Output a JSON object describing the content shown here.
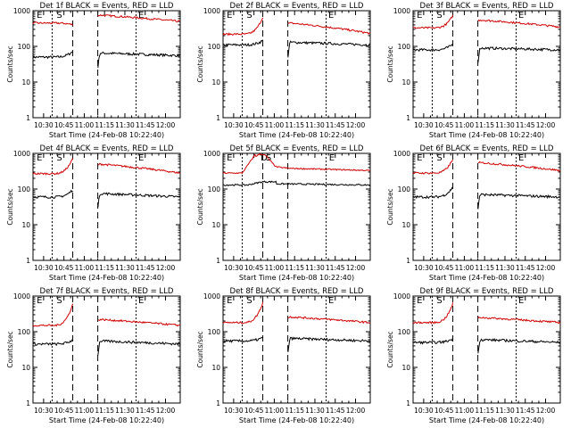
{
  "colors": {
    "events": "#000000",
    "lld": "#d00000",
    "axes": "#000000",
    "background": "#ffffff"
  },
  "chart_data": [
    {
      "type": "line",
      "title": "Det 1f BLACK = Events, RED = LLD",
      "xlabel": "Start Time (24-Feb-08 10:22:40)",
      "ylabel": "Counts/sec",
      "x_ticks": [
        "10:30",
        "10:45",
        "11:00",
        "11:15",
        "11:30",
        "11:45",
        "12:00"
      ],
      "y_ticks": [
        "1",
        "10",
        "100",
        "1000"
      ],
      "y_scale": "log",
      "ylim": [
        1,
        1000
      ],
      "markers": [
        "E",
        "S",
        "E"
      ],
      "series": [
        {
          "name": "Events",
          "color": "#000000",
          "base_before": 50,
          "base_after": 65,
          "base_end": 55,
          "ramp_min": 75
        },
        {
          "name": "LLD",
          "color": "#d00000",
          "base_before": 450,
          "base_after": 750,
          "base_end": 500,
          "ramp_min": 400
        }
      ]
    },
    {
      "type": "line",
      "title": "Det 2f BLACK = Events, RED = LLD",
      "xlabel": "Start Time (24-Feb-08 10:22:40)",
      "ylabel": "Counts/sec",
      "x_ticks": [
        "10:30",
        "10:45",
        "11:00",
        "11:15",
        "11:30",
        "11:45",
        "12:00"
      ],
      "y_ticks": [
        "1",
        "10",
        "100",
        "1000"
      ],
      "y_scale": "log",
      "ylim": [
        1,
        1000
      ],
      "markers": [
        "E",
        "S",
        "E"
      ],
      "series": [
        {
          "name": "Events",
          "color": "#000000",
          "base_before": 110,
          "base_after": 130,
          "base_end": 110,
          "ramp_min": 150
        },
        {
          "name": "LLD",
          "color": "#d00000",
          "base_before": 220,
          "base_after": 450,
          "base_end": 230,
          "ramp_min": 750
        }
      ]
    },
    {
      "type": "line",
      "title": "Det 3f BLACK = Events, RED = LLD",
      "xlabel": "Start Time (24-Feb-08 10:22:40)",
      "ylabel": "Counts/sec",
      "x_ticks": [
        "10:30",
        "10:45",
        "11:00",
        "11:15",
        "11:30",
        "11:45",
        "12:00"
      ],
      "y_ticks": [
        "1",
        "10",
        "100",
        "1000"
      ],
      "y_scale": "log",
      "ylim": [
        1,
        1000
      ],
      "markers": [
        "E",
        "S",
        "E"
      ],
      "series": [
        {
          "name": "Events",
          "color": "#000000",
          "base_before": 80,
          "base_after": 90,
          "base_end": 80,
          "ramp_min": 120
        },
        {
          "name": "LLD",
          "color": "#d00000",
          "base_before": 330,
          "base_after": 550,
          "base_end": 350,
          "ramp_min": 800
        }
      ]
    },
    {
      "type": "line",
      "title": "Det 4f BLACK = Events, RED = LLD",
      "xlabel": "Start Time (24-Feb-08 10:22:40)",
      "ylabel": "Counts/sec",
      "x_ticks": [
        "10:30",
        "10:45",
        "11:00",
        "11:15",
        "11:30",
        "11:45",
        "12:00"
      ],
      "y_ticks": [
        "1",
        "10",
        "100",
        "1000"
      ],
      "y_scale": "log",
      "ylim": [
        1,
        1000
      ],
      "markers": [
        "E",
        "S",
        "E"
      ],
      "series": [
        {
          "name": "Events",
          "color": "#000000",
          "base_before": 60,
          "base_after": 75,
          "base_end": 60,
          "ramp_min": 100
        },
        {
          "name": "LLD",
          "color": "#d00000",
          "base_before": 270,
          "base_after": 500,
          "base_end": 280,
          "ramp_min": 800
        }
      ]
    },
    {
      "type": "line",
      "title": "Det 5f BLACK = Events, RED = LLD",
      "xlabel": "Start Time (24-Feb-08 10:22:40)",
      "ylabel": "Counts/sec",
      "x_ticks": [
        "10:30",
        "10:45",
        "11:00",
        "11:15",
        "11:30",
        "11:45",
        "12:00"
      ],
      "y_ticks": [
        "1",
        "10",
        "100",
        "1000"
      ],
      "y_scale": "log",
      "ylim": [
        1,
        1000
      ],
      "markers": [
        "E",
        "D",
        "S",
        "E"
      ],
      "series": [
        {
          "name": "Events",
          "color": "#000000",
          "base_before": 130,
          "base_after": 140,
          "base_end": 130,
          "ramp_min": 160
        },
        {
          "name": "LLD",
          "color": "#d00000",
          "base_before": 280,
          "base_after": 380,
          "base_end": 330,
          "ramp_min": 950
        }
      ]
    },
    {
      "type": "line",
      "title": "Det 6f BLACK = Events, RED = LLD",
      "xlabel": "Start Time (24-Feb-08 10:22:40)",
      "ylabel": "Counts/sec",
      "x_ticks": [
        "10:30",
        "10:45",
        "11:00",
        "11:15",
        "11:30",
        "11:45",
        "12:00"
      ],
      "y_ticks": [
        "1",
        "10",
        "100",
        "1000"
      ],
      "y_scale": "log",
      "ylim": [
        1,
        1000
      ],
      "markers": [
        "E",
        "S",
        "E"
      ],
      "series": [
        {
          "name": "Events",
          "color": "#000000",
          "base_before": 60,
          "base_after": 70,
          "base_end": 60,
          "ramp_min": 120
        },
        {
          "name": "LLD",
          "color": "#d00000",
          "base_before": 280,
          "base_after": 550,
          "base_end": 330,
          "ramp_min": 750
        }
      ]
    },
    {
      "type": "line",
      "title": "Det 7f BLACK = Events, RED = LLD",
      "xlabel": "Start Time (24-Feb-08 10:22:40)",
      "ylabel": "Counts/sec",
      "x_ticks": [
        "10:30",
        "10:45",
        "11:00",
        "11:15",
        "11:30",
        "11:45",
        "12:00"
      ],
      "y_ticks": [
        "1",
        "10",
        "100",
        "1000"
      ],
      "y_scale": "log",
      "ylim": [
        1,
        1000
      ],
      "markers": [
        "E",
        "S",
        "E"
      ],
      "series": [
        {
          "name": "Events",
          "color": "#000000",
          "base_before": 45,
          "base_after": 55,
          "base_end": 45,
          "ramp_min": 60
        },
        {
          "name": "LLD",
          "color": "#d00000",
          "base_before": 150,
          "base_after": 220,
          "base_end": 150,
          "ramp_min": 700
        }
      ]
    },
    {
      "type": "line",
      "title": "Det 8f BLACK = Events, RED = LLD",
      "xlabel": "Start Time (24-Feb-08 10:22:40)",
      "ylabel": "Counts/sec",
      "x_ticks": [
        "10:30",
        "10:45",
        "11:00",
        "11:15",
        "11:30",
        "11:45",
        "12:00"
      ],
      "y_ticks": [
        "1",
        "10",
        "100",
        "1000"
      ],
      "y_scale": "log",
      "ylim": [
        1,
        1000
      ],
      "markers": [
        "E",
        "S",
        "E"
      ],
      "series": [
        {
          "name": "Events",
          "color": "#000000",
          "base_before": 55,
          "base_after": 65,
          "base_end": 55,
          "ramp_min": 70
        },
        {
          "name": "LLD",
          "color": "#d00000",
          "base_before": 180,
          "base_after": 260,
          "base_end": 180,
          "ramp_min": 750
        }
      ]
    },
    {
      "type": "line",
      "title": "Det 9f BLACK = Events, RED = LLD",
      "xlabel": "Start Time (24-Feb-08 10:22:40)",
      "ylabel": "Counts/sec",
      "x_ticks": [
        "10:30",
        "10:45",
        "11:00",
        "11:15",
        "11:30",
        "11:45",
        "12:00"
      ],
      "y_ticks": [
        "1",
        "10",
        "100",
        "1000"
      ],
      "y_scale": "log",
      "ylim": [
        1,
        1000
      ],
      "markers": [
        "E",
        "S",
        "E"
      ],
      "series": [
        {
          "name": "Events",
          "color": "#000000",
          "base_before": 50,
          "base_after": 60,
          "base_end": 50,
          "ramp_min": 65
        },
        {
          "name": "LLD",
          "color": "#d00000",
          "base_before": 180,
          "base_after": 250,
          "base_end": 180,
          "ramp_min": 700
        }
      ]
    }
  ]
}
